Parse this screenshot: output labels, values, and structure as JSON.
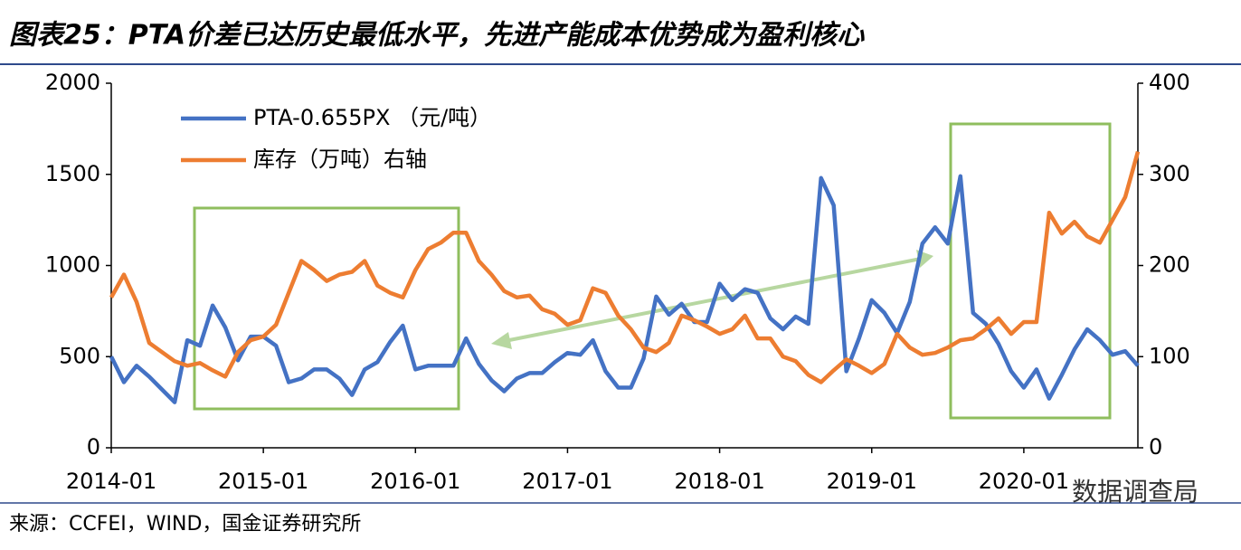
{
  "chart_data": {
    "type": "line",
    "title": "图表25：PTA价差已达历史最低水平，先进产能成本优势成为盈利核心",
    "source": "来源：CCFEI，WIND，国金证券研究所",
    "watermark": "数据调查局",
    "categories": [
      "2014-01",
      null,
      null,
      null,
      null,
      null,
      null,
      null,
      null,
      null,
      null,
      null,
      "2015-01",
      null,
      null,
      null,
      null,
      null,
      null,
      null,
      null,
      null,
      null,
      null,
      "2016-01",
      null,
      null,
      null,
      null,
      null,
      null,
      null,
      null,
      null,
      null,
      null,
      "2017-01",
      null,
      null,
      null,
      null,
      null,
      null,
      null,
      null,
      null,
      null,
      null,
      "2018-01",
      null,
      null,
      null,
      null,
      null,
      null,
      null,
      null,
      null,
      null,
      null,
      "2019-01",
      null,
      null,
      null,
      null,
      null,
      null,
      null,
      null,
      null,
      null,
      null,
      "2020-01",
      null,
      null,
      null,
      null,
      null,
      null,
      null,
      null,
      null
    ],
    "series": [
      {
        "name": "PTA-0.655PX （元/吨）",
        "color": "#4472c4",
        "axis": "y",
        "values": [
          500,
          360,
          450,
          390,
          320,
          250,
          590,
          560,
          780,
          660,
          480,
          610,
          610,
          560,
          360,
          380,
          430,
          430,
          380,
          290,
          430,
          470,
          580,
          670,
          430,
          450,
          450,
          450,
          600,
          460,
          370,
          310,
          380,
          410,
          410,
          470,
          520,
          510,
          590,
          420,
          330,
          330,
          490,
          830,
          730,
          790,
          690,
          690,
          900,
          810,
          870,
          850,
          710,
          650,
          720,
          680,
          1480,
          1330,
          420,
          600,
          810,
          740,
          630,
          800,
          1120,
          1210,
          1120,
          1490,
          740,
          680,
          570,
          420,
          330,
          430,
          270,
          400,
          540,
          650,
          590,
          510,
          530,
          450
        ]
      },
      {
        "name": "库存（万吨）右轴",
        "color": "#ed7d31",
        "axis": "y2",
        "values": [
          165,
          190,
          160,
          115,
          105,
          95,
          90,
          93,
          85,
          78,
          105,
          118,
          122,
          135,
          170,
          205,
          195,
          183,
          190,
          193,
          205,
          178,
          170,
          165,
          195,
          218,
          225,
          236,
          236,
          205,
          190,
          172,
          165,
          167,
          152,
          147,
          135,
          140,
          175,
          170,
          145,
          130,
          110,
          105,
          115,
          145,
          140,
          133,
          125,
          130,
          145,
          120,
          120,
          100,
          95,
          80,
          72,
          85,
          97,
          90,
          82,
          92,
          125,
          110,
          102,
          104,
          110,
          118,
          120,
          130,
          142,
          125,
          138,
          138,
          258,
          235,
          248,
          232,
          225,
          250,
          275,
          325
        ]
      }
    ],
    "ylim": [
      0,
      2000
    ],
    "yticks": [
      0,
      500,
      1000,
      1500,
      2000
    ],
    "y2lim": [
      0,
      400
    ],
    "y2ticks": [
      0,
      100,
      200,
      300,
      400
    ]
  }
}
